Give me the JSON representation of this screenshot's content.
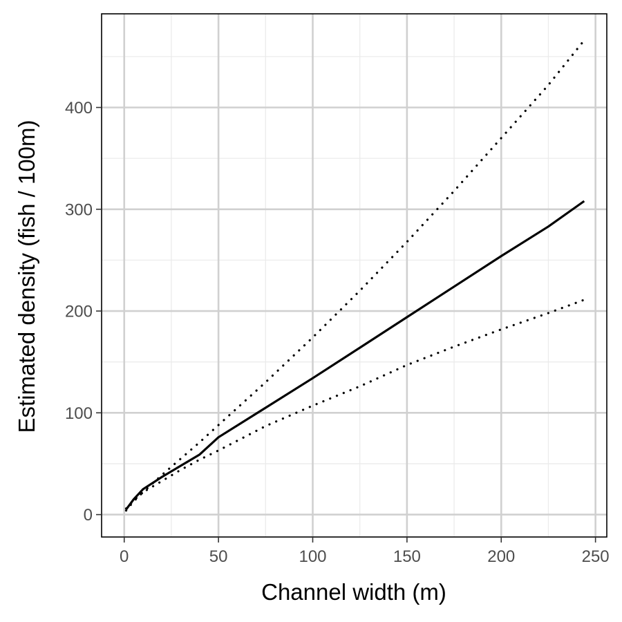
{
  "chart_data": {
    "type": "line",
    "title": "",
    "xlabel": "Channel width (m)",
    "ylabel": "Estimated density (fish / 100m)",
    "xlim": [
      -12,
      256
    ],
    "ylim": [
      -22,
      492
    ],
    "x_ticks": [
      0,
      50,
      100,
      150,
      200,
      250
    ],
    "y_ticks": [
      0,
      100,
      200,
      300,
      400
    ],
    "grid": true,
    "legend": "none",
    "series": [
      {
        "style": "solid",
        "color": "#000000",
        "points": [
          [
            1,
            5
          ],
          [
            5,
            15
          ],
          [
            10,
            25
          ],
          [
            20,
            37
          ],
          [
            30,
            48
          ],
          [
            40,
            59
          ],
          [
            50,
            76
          ],
          [
            75,
            105
          ],
          [
            100,
            134
          ],
          [
            125,
            164
          ],
          [
            150,
            194
          ],
          [
            175,
            224
          ],
          [
            200,
            254
          ],
          [
            225,
            283
          ],
          [
            244,
            308
          ]
        ]
      },
      {
        "style": "dotted",
        "color": "#000000",
        "points": [
          [
            1,
            6
          ],
          [
            5,
            14
          ],
          [
            10,
            22
          ],
          [
            20,
            39
          ],
          [
            30,
            55
          ],
          [
            40,
            71
          ],
          [
            50,
            88
          ],
          [
            75,
            130
          ],
          [
            100,
            174
          ],
          [
            125,
            220
          ],
          [
            150,
            268
          ],
          [
            175,
            318
          ],
          [
            200,
            370
          ],
          [
            225,
            422
          ],
          [
            244,
            466
          ]
        ]
      },
      {
        "style": "dotted",
        "color": "#000000",
        "points": [
          [
            1,
            4
          ],
          [
            5,
            13
          ],
          [
            10,
            22
          ],
          [
            20,
            33
          ],
          [
            30,
            44
          ],
          [
            40,
            54
          ],
          [
            50,
            63
          ],
          [
            75,
            87
          ],
          [
            100,
            107
          ],
          [
            125,
            126
          ],
          [
            150,
            147
          ],
          [
            175,
            165
          ],
          [
            200,
            182
          ],
          [
            225,
            198
          ],
          [
            244,
            211
          ]
        ]
      }
    ]
  }
}
